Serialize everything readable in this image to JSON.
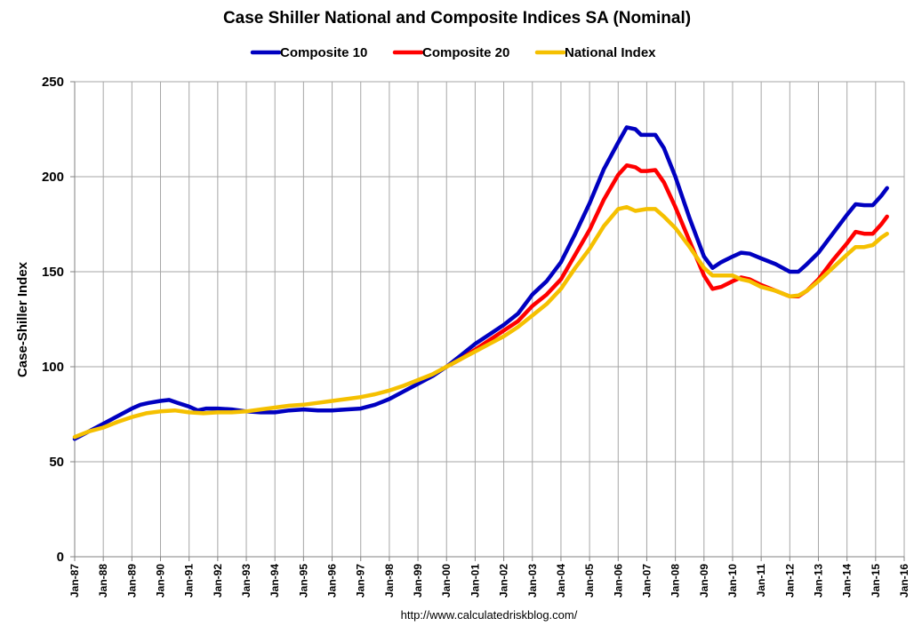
{
  "chart_data": {
    "type": "line",
    "title": "Case Shiller National and Composite Indices SA (Nominal)",
    "ylabel": "Case-Shiller Index",
    "xlabel": "",
    "ylim": [
      0,
      250
    ],
    "yticks": [
      0,
      50,
      100,
      150,
      200,
      250
    ],
    "xlim": [
      1987,
      2016
    ],
    "xticks": [
      {
        "x": 1987,
        "label": "Jan-87"
      },
      {
        "x": 1988,
        "label": "Jan-88"
      },
      {
        "x": 1989,
        "label": "Jan-89"
      },
      {
        "x": 1990,
        "label": "Jan-90"
      },
      {
        "x": 1991,
        "label": "Jan-91"
      },
      {
        "x": 1992,
        "label": "Jan-92"
      },
      {
        "x": 1993,
        "label": "Jan-93"
      },
      {
        "x": 1994,
        "label": "Jan-94"
      },
      {
        "x": 1995,
        "label": "Jan-95"
      },
      {
        "x": 1996,
        "label": "Jan-96"
      },
      {
        "x": 1997,
        "label": "Jan-97"
      },
      {
        "x": 1998,
        "label": "Jan-98"
      },
      {
        "x": 1999,
        "label": "Jan-99"
      },
      {
        "x": 2000,
        "label": "Jan-00"
      },
      {
        "x": 2001,
        "label": "Jan-01"
      },
      {
        "x": 2002,
        "label": "Jan-02"
      },
      {
        "x": 2003,
        "label": "Jan-03"
      },
      {
        "x": 2004,
        "label": "Jan-04"
      },
      {
        "x": 2005,
        "label": "Jan-05"
      },
      {
        "x": 2006,
        "label": "Jan-06"
      },
      {
        "x": 2007,
        "label": "Jan-07"
      },
      {
        "x": 2008,
        "label": "Jan-08"
      },
      {
        "x": 2009,
        "label": "Jan-09"
      },
      {
        "x": 2010,
        "label": "Jan-10"
      },
      {
        "x": 2011,
        "label": "Jan-11"
      },
      {
        "x": 2012,
        "label": "Jan-12"
      },
      {
        "x": 2013,
        "label": "Jan-13"
      },
      {
        "x": 2014,
        "label": "Jan-14"
      },
      {
        "x": 2015,
        "label": "Jan-15"
      },
      {
        "x": 2016,
        "label": "Jan-16"
      }
    ],
    "grid": true,
    "legend_position": "top",
    "series": [
      {
        "name": "Composite 10",
        "color": "#0000c0",
        "points": [
          [
            1987.0,
            62
          ],
          [
            1987.5,
            66
          ],
          [
            1988.0,
            70
          ],
          [
            1988.5,
            74
          ],
          [
            1989.0,
            78
          ],
          [
            1989.3,
            80
          ],
          [
            1989.6,
            81
          ],
          [
            1990.0,
            82
          ],
          [
            1990.3,
            82.5
          ],
          [
            1990.6,
            81
          ],
          [
            1991.0,
            79
          ],
          [
            1991.3,
            77
          ],
          [
            1991.6,
            78
          ],
          [
            1992.0,
            78
          ],
          [
            1992.5,
            77.5
          ],
          [
            1993.0,
            76.5
          ],
          [
            1993.5,
            76
          ],
          [
            1994.0,
            76
          ],
          [
            1994.5,
            77
          ],
          [
            1995.0,
            77.5
          ],
          [
            1995.5,
            77
          ],
          [
            1996.0,
            77
          ],
          [
            1996.5,
            77.5
          ],
          [
            1997.0,
            78
          ],
          [
            1997.5,
            80
          ],
          [
            1998.0,
            83
          ],
          [
            1998.5,
            87
          ],
          [
            1999.0,
            91
          ],
          [
            1999.5,
            95
          ],
          [
            2000.0,
            100
          ],
          [
            2000.5,
            106
          ],
          [
            2001.0,
            112
          ],
          [
            2001.5,
            117
          ],
          [
            2002.0,
            122
          ],
          [
            2002.5,
            128
          ],
          [
            2003.0,
            138
          ],
          [
            2003.5,
            145
          ],
          [
            2004.0,
            155
          ],
          [
            2004.5,
            170
          ],
          [
            2005.0,
            186
          ],
          [
            2005.5,
            204
          ],
          [
            2006.0,
            218
          ],
          [
            2006.3,
            226
          ],
          [
            2006.6,
            225
          ],
          [
            2006.8,
            222
          ],
          [
            2007.0,
            222
          ],
          [
            2007.3,
            222
          ],
          [
            2007.6,
            215
          ],
          [
            2008.0,
            200
          ],
          [
            2008.5,
            178
          ],
          [
            2009.0,
            158
          ],
          [
            2009.3,
            152
          ],
          [
            2009.6,
            155
          ],
          [
            2010.0,
            158
          ],
          [
            2010.3,
            160
          ],
          [
            2010.6,
            159.5
          ],
          [
            2011.0,
            157
          ],
          [
            2011.5,
            154
          ],
          [
            2012.0,
            150
          ],
          [
            2012.3,
            150
          ],
          [
            2012.6,
            154
          ],
          [
            2013.0,
            160
          ],
          [
            2013.5,
            170
          ],
          [
            2014.0,
            180
          ],
          [
            2014.3,
            185.5
          ],
          [
            2014.6,
            185
          ],
          [
            2014.9,
            185
          ],
          [
            2015.2,
            190
          ],
          [
            2015.4,
            194
          ]
        ]
      },
      {
        "name": "Composite 20",
        "color": "#ff0000",
        "points": [
          [
            2000.0,
            100
          ],
          [
            2000.5,
            104
          ],
          [
            2001.0,
            109
          ],
          [
            2001.5,
            114
          ],
          [
            2002.0,
            119
          ],
          [
            2002.5,
            124
          ],
          [
            2003.0,
            132
          ],
          [
            2003.5,
            138
          ],
          [
            2004.0,
            146
          ],
          [
            2004.5,
            159
          ],
          [
            2005.0,
            172
          ],
          [
            2005.5,
            188
          ],
          [
            2006.0,
            201
          ],
          [
            2006.3,
            206
          ],
          [
            2006.6,
            205
          ],
          [
            2006.8,
            203
          ],
          [
            2007.0,
            203
          ],
          [
            2007.3,
            203.5
          ],
          [
            2007.6,
            197
          ],
          [
            2008.0,
            184
          ],
          [
            2008.5,
            166
          ],
          [
            2009.0,
            148
          ],
          [
            2009.3,
            141
          ],
          [
            2009.6,
            142
          ],
          [
            2010.0,
            145
          ],
          [
            2010.3,
            147
          ],
          [
            2010.6,
            146
          ],
          [
            2011.0,
            143
          ],
          [
            2011.5,
            140
          ],
          [
            2012.0,
            137
          ],
          [
            2012.3,
            137
          ],
          [
            2012.6,
            140
          ],
          [
            2013.0,
            146
          ],
          [
            2013.5,
            156
          ],
          [
            2014.0,
            165
          ],
          [
            2014.3,
            171
          ],
          [
            2014.6,
            170
          ],
          [
            2014.9,
            170
          ],
          [
            2015.2,
            175
          ],
          [
            2015.4,
            179
          ]
        ]
      },
      {
        "name": "National Index",
        "color": "#f5c000",
        "points": [
          [
            1987.0,
            63
          ],
          [
            1987.5,
            66
          ],
          [
            1988.0,
            68
          ],
          [
            1988.5,
            71
          ],
          [
            1989.0,
            73.5
          ],
          [
            1989.5,
            75.5
          ],
          [
            1990.0,
            76.5
          ],
          [
            1990.5,
            77
          ],
          [
            1991.0,
            76
          ],
          [
            1991.5,
            75.5
          ],
          [
            1992.0,
            76
          ],
          [
            1992.5,
            76
          ],
          [
            1993.0,
            76.5
          ],
          [
            1993.5,
            77.5
          ],
          [
            1994.0,
            78.5
          ],
          [
            1994.5,
            79.5
          ],
          [
            1995.0,
            80
          ],
          [
            1995.5,
            81
          ],
          [
            1996.0,
            82
          ],
          [
            1996.5,
            83
          ],
          [
            1997.0,
            84
          ],
          [
            1997.5,
            85.5
          ],
          [
            1998.0,
            87.5
          ],
          [
            1998.5,
            90
          ],
          [
            1999.0,
            93
          ],
          [
            1999.5,
            96
          ],
          [
            2000.0,
            100
          ],
          [
            2000.5,
            104
          ],
          [
            2001.0,
            108
          ],
          [
            2001.5,
            112
          ],
          [
            2002.0,
            116
          ],
          [
            2002.5,
            121
          ],
          [
            2003.0,
            127
          ],
          [
            2003.5,
            133
          ],
          [
            2004.0,
            141
          ],
          [
            2004.5,
            152
          ],
          [
            2005.0,
            162
          ],
          [
            2005.5,
            174
          ],
          [
            2006.0,
            183
          ],
          [
            2006.3,
            184
          ],
          [
            2006.6,
            182
          ],
          [
            2007.0,
            183
          ],
          [
            2007.3,
            183
          ],
          [
            2007.6,
            179
          ],
          [
            2008.0,
            173
          ],
          [
            2008.5,
            163
          ],
          [
            2009.0,
            152
          ],
          [
            2009.3,
            148
          ],
          [
            2009.6,
            148
          ],
          [
            2010.0,
            148
          ],
          [
            2010.3,
            146
          ],
          [
            2010.6,
            145
          ],
          [
            2011.0,
            142
          ],
          [
            2011.5,
            140
          ],
          [
            2012.0,
            137
          ],
          [
            2012.3,
            137.5
          ],
          [
            2012.6,
            140
          ],
          [
            2013.0,
            145
          ],
          [
            2013.5,
            152
          ],
          [
            2014.0,
            159
          ],
          [
            2014.3,
            163
          ],
          [
            2014.6,
            163
          ],
          [
            2014.9,
            164
          ],
          [
            2015.2,
            168
          ],
          [
            2015.4,
            170
          ]
        ]
      }
    ],
    "footer": "http://www.calculatedriskblog.com/"
  }
}
